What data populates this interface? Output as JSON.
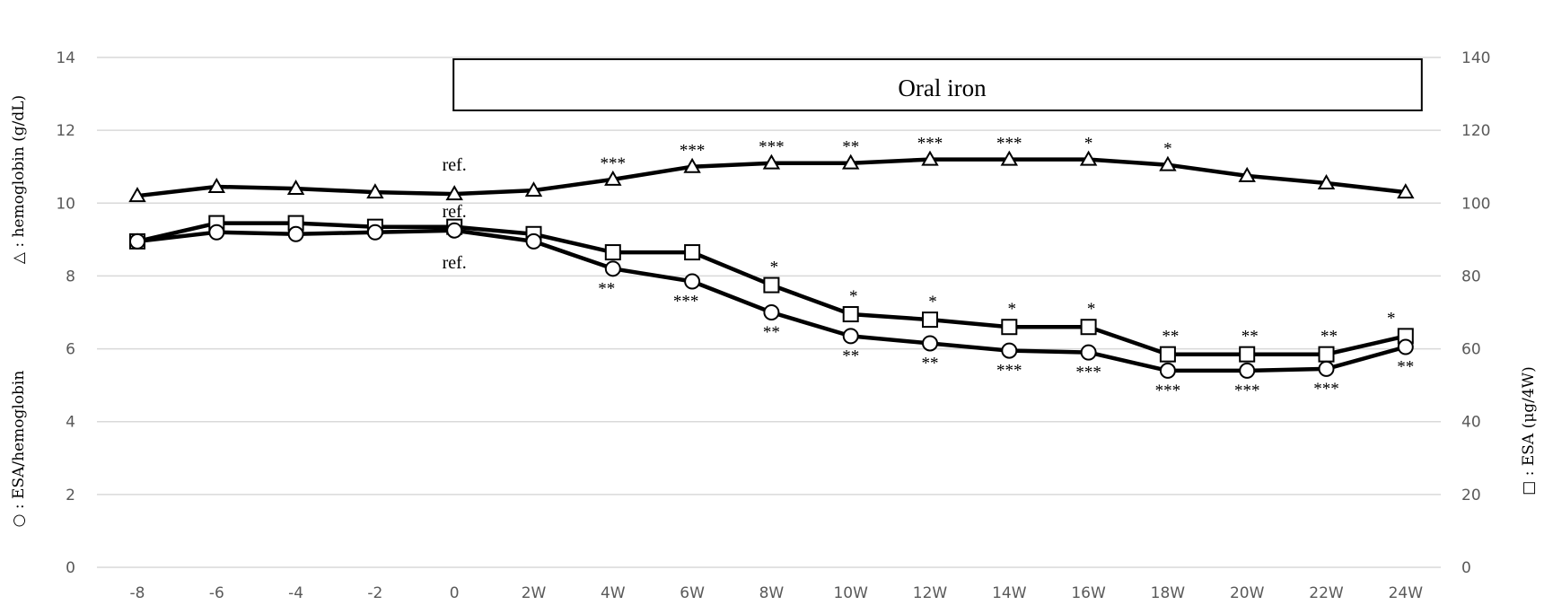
{
  "chart_data": {
    "type": "line",
    "categories": [
      "-8",
      "-6",
      "-4",
      "-2",
      "0",
      "2W",
      "4W",
      "6W",
      "8W",
      "10W",
      "12W",
      "14W",
      "16W",
      "18W",
      "20W",
      "22W",
      "24W"
    ],
    "y_left": {
      "label_top": "△ : hemoglobin (g/dL)",
      "label_bottom": "○ : ESA/hemoglobin",
      "ylim": [
        0,
        14
      ],
      "ticks": [
        "0",
        "2",
        "4",
        "6",
        "8",
        "10",
        "12",
        "14"
      ]
    },
    "y_right": {
      "label": "□ : ESA (μg/4W)",
      "ylim": [
        0,
        140
      ],
      "ticks": [
        "0",
        "20",
        "40",
        "60",
        "80",
        "100",
        "120",
        "140"
      ]
    },
    "grid": true,
    "band": {
      "label": "Oral iron",
      "from": "0",
      "to": "24W"
    },
    "series": [
      {
        "key": "hb",
        "marker": "triangle",
        "axis": "left",
        "values": [
          10.2,
          10.45,
          10.4,
          10.3,
          10.25,
          10.35,
          10.65,
          11.0,
          11.1,
          11.1,
          11.2,
          11.2,
          11.2,
          11.05,
          10.75,
          10.55,
          10.3
        ]
      },
      {
        "key": "esa",
        "marker": "square",
        "axis": "right",
        "values": [
          89.5,
          94.5,
          94.5,
          93.5,
          93.5,
          91.5,
          86.5,
          86.5,
          77.5,
          69.5,
          68.0,
          66.0,
          66.0,
          58.5,
          58.5,
          58.5,
          63.5
        ]
      },
      {
        "key": "esa_hb",
        "marker": "circle",
        "axis": "left",
        "values": [
          8.95,
          9.2,
          9.15,
          9.2,
          9.25,
          8.95,
          8.2,
          7.85,
          7.0,
          6.35,
          6.15,
          5.95,
          5.9,
          5.4,
          5.4,
          5.45,
          6.05
        ]
      }
    ],
    "annotations": {
      "hb": [
        "",
        "",
        "",
        "",
        "ref.",
        "",
        "***",
        "***",
        "***",
        "**",
        "***",
        "***",
        "*",
        "*",
        "",
        "",
        ""
      ],
      "esa": [
        "",
        "",
        "",
        "",
        "ref.",
        "",
        "",
        "",
        "*",
        "*",
        "*",
        "*",
        "*",
        "**",
        "**",
        "**",
        "*"
      ],
      "esa_hb": [
        "",
        "",
        "",
        "",
        "ref.",
        "",
        "**",
        "***",
        "**",
        "**",
        "**",
        "***",
        "***",
        "***",
        "***",
        "***",
        "**"
      ]
    }
  }
}
